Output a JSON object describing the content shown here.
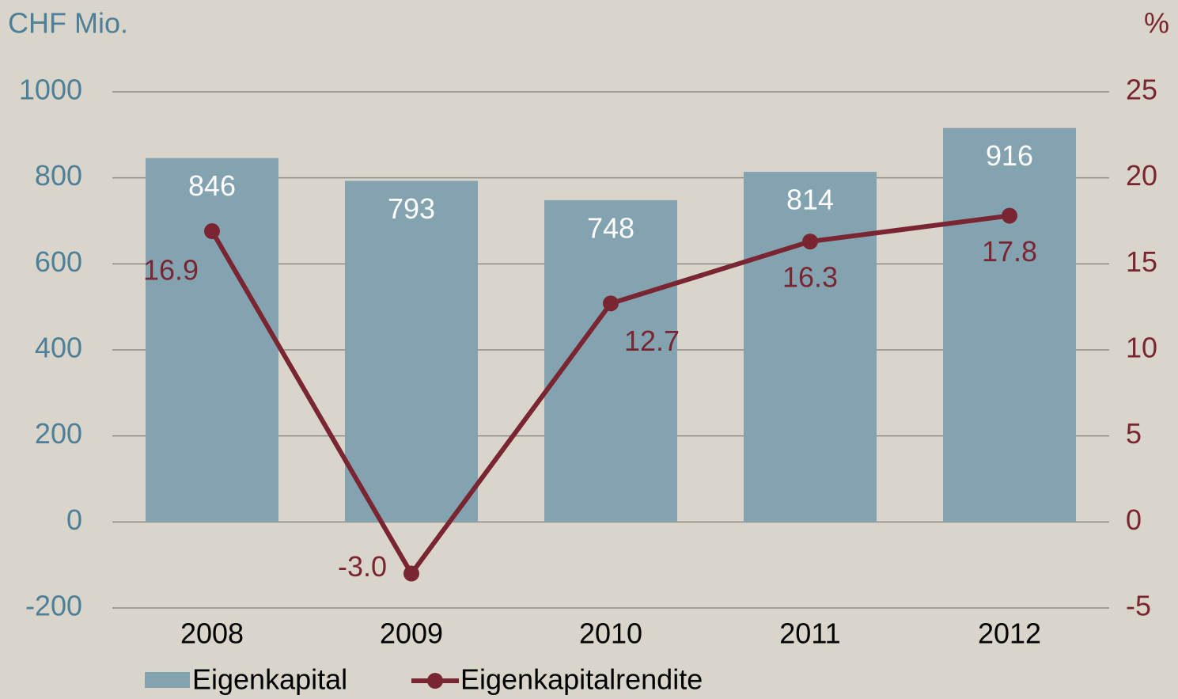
{
  "chart_data": {
    "type": "bar",
    "y_label": "CHF Mio.",
    "y2_label": "%",
    "categories": [
      "2008",
      "2009",
      "2010",
      "2011",
      "2012"
    ],
    "series": [
      {
        "name": "Eigenkapital",
        "color": "#84a3b1",
        "values": [
          846,
          793,
          748,
          814,
          916
        ]
      },
      {
        "name": "Eigenkapitalrendite",
        "type": "line",
        "axis": "y2",
        "color": "#7a2632",
        "values": [
          16.9,
          -3.0,
          12.7,
          16.3,
          17.8
        ],
        "value_labels": [
          "16.9",
          "-3.0",
          "12.7",
          "16.3",
          "17.8"
        ]
      }
    ],
    "ylim": [
      -200,
      1000
    ],
    "yticks": [
      -200,
      0,
      200,
      400,
      600,
      800,
      1000
    ],
    "y2lim": [
      -5,
      25
    ],
    "y2ticks": [
      -5,
      0,
      5,
      10,
      15,
      20,
      25
    ],
    "grid": true,
    "legend": "bottom"
  }
}
